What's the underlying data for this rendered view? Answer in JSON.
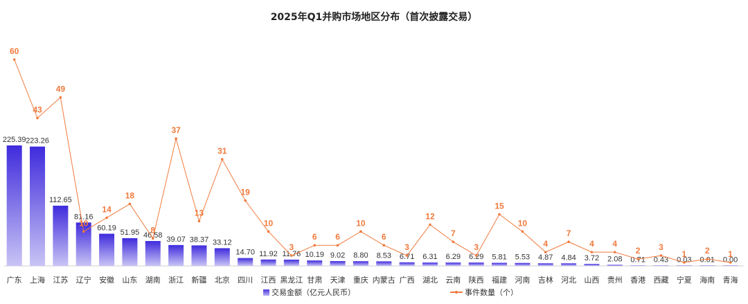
{
  "chart_data": {
    "type": "bar",
    "title": "2025年Q1并购市场地区分布（首次披露交易）",
    "categories": [
      "广东",
      "上海",
      "江苏",
      "辽宁",
      "安徽",
      "山东",
      "湖南",
      "浙江",
      "新疆",
      "北京",
      "四川",
      "江西",
      "黑龙江",
      "甘肃",
      "天津",
      "重庆",
      "内蒙古",
      "广西",
      "湖北",
      "云南",
      "陕西",
      "福建",
      "河南",
      "吉林",
      "河北",
      "山西",
      "贵州",
      "香港",
      "西藏",
      "宁夏",
      "海南",
      "青海"
    ],
    "series": [
      {
        "name": "交易金额（亿元人民币）",
        "type": "bar",
        "color": "#4b36e0",
        "values": [
          225.39,
          223.26,
          112.65,
          81.16,
          60.19,
          51.95,
          46.58,
          39.07,
          38.37,
          33.12,
          14.7,
          11.92,
          11.76,
          10.19,
          9.02,
          8.8,
          8.53,
          6.71,
          6.31,
          6.29,
          6.29,
          5.81,
          5.53,
          4.87,
          4.84,
          3.72,
          2.08,
          0.71,
          0.43,
          0.03,
          0.01,
          0.0
        ],
        "labels": [
          "225.39",
          "223.26",
          "112.65",
          "81.16",
          "60.19",
          "51.95",
          "46.58",
          "39.07",
          "38.37",
          "33.12",
          "14.70",
          "11.92",
          "11.76",
          "10.19",
          "9.02",
          "8.80",
          "8.53",
          "6.71",
          "6.31",
          "6.29",
          "6.29",
          "5.81",
          "5.53",
          "4.87",
          "4.84",
          "3.72",
          "2.08",
          "0.71",
          "0.43",
          "0.03",
          "0.01",
          "0.00"
        ]
      },
      {
        "name": "事件数量（个）",
        "type": "line",
        "color": "#f07a3c",
        "values": [
          60,
          43,
          49,
          10,
          14,
          18,
          8,
          37,
          13,
          31,
          19,
          10,
          3,
          6,
          6,
          10,
          6,
          3,
          12,
          7,
          3,
          15,
          10,
          4,
          7,
          4,
          4,
          2,
          3,
          1,
          2,
          1
        ]
      }
    ],
    "grid": false,
    "legend": "bottom"
  }
}
